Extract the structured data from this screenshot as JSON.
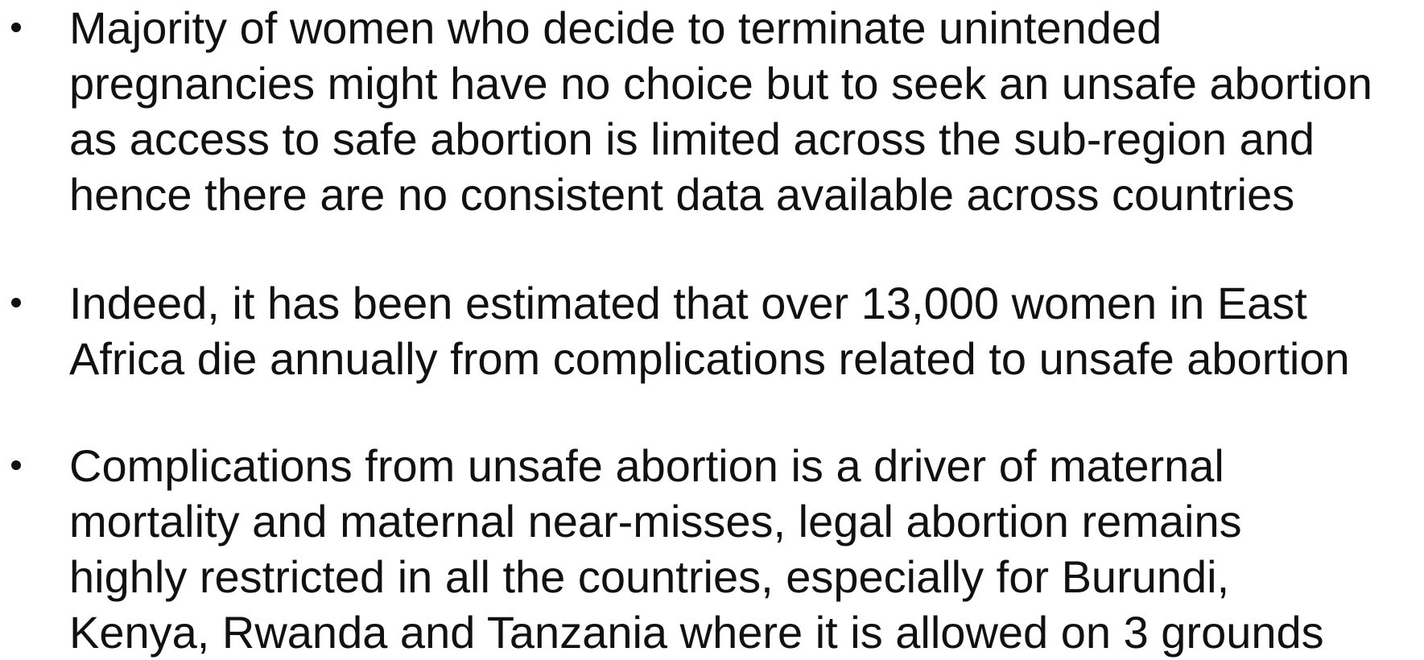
{
  "bullets": [
    {
      "lines": [
        "Majority of women who decide to terminate unintended",
        "pregnancies might have no choice but to seek an unsafe abortion",
        "as access to safe abortion is limited across the sub-region and",
        "hence there are no consistent data available across countries"
      ]
    },
    {
      "lines": [
        "Indeed, it has been estimated that over 13,000 women in East",
        "Africa die annually from complications related to unsafe abortion"
      ]
    },
    {
      "lines": [
        "Complications from unsafe abortion is a driver of maternal",
        "mortality and maternal near-misses, legal abortion remains",
        "highly restricted in all the countries, especially for Burundi,",
        "Kenya, Rwanda and Tanzania where it is allowed on 3 grounds"
      ]
    }
  ]
}
